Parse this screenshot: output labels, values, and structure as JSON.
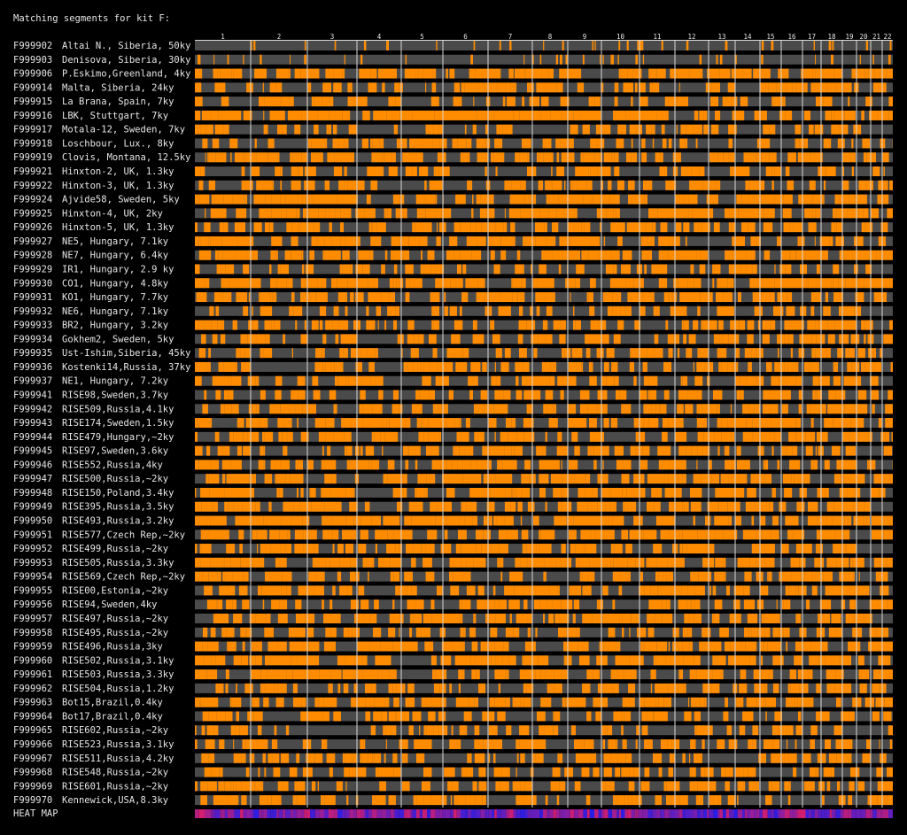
{
  "title": "Matching segments for kit F:",
  "chromosomes": [
    "1",
    "2",
    "3",
    "4",
    "5",
    "6",
    "7",
    "8",
    "9",
    "10",
    "11",
    "12",
    "13",
    "14",
    "15",
    "16",
    "17",
    "18",
    "19",
    "20",
    "21",
    "22"
  ],
  "rows": [
    {
      "kit": "F999902",
      "name": "Altai N., Siberia, 50ky"
    },
    {
      "kit": "F999903",
      "name": "Denisova, Siberia, 30ky"
    },
    {
      "kit": "F999906",
      "name": "P.Eskimo,Greenland, 4ky"
    },
    {
      "kit": "F999914",
      "name": "Malta, Siberia, 24ky"
    },
    {
      "kit": "F999915",
      "name": "La Brana, Spain, 7ky"
    },
    {
      "kit": "F999916",
      "name": "LBK, Stuttgart, 7ky"
    },
    {
      "kit": "F999917",
      "name": "Motala-12, Sweden, 7ky"
    },
    {
      "kit": "F999918",
      "name": "Loschbour, Lux., 8ky"
    },
    {
      "kit": "F999919",
      "name": "Clovis, Montana, 12.5ky"
    },
    {
      "kit": "F999921",
      "name": "Hinxton-2, UK, 1.3ky"
    },
    {
      "kit": "F999922",
      "name": "Hinxton-3, UK, 1.3ky"
    },
    {
      "kit": "F999924",
      "name": "Ajvide58, Sweden, 5ky"
    },
    {
      "kit": "F999925",
      "name": "Hinxton-4, UK, 2ky"
    },
    {
      "kit": "F999926",
      "name": "Hinxton-5, UK, 1.3ky"
    },
    {
      "kit": "F999927",
      "name": "NE5, Hungary, 7.1ky"
    },
    {
      "kit": "F999928",
      "name": "NE7, Hungary, 6.4ky"
    },
    {
      "kit": "F999929",
      "name": "IR1, Hungary, 2.9 ky"
    },
    {
      "kit": "F999930",
      "name": "CO1, Hungary, 4.8ky"
    },
    {
      "kit": "F999931",
      "name": "KO1, Hungary, 7.7ky"
    },
    {
      "kit": "F999932",
      "name": "NE6, Hungary, 7.1ky"
    },
    {
      "kit": "F999933",
      "name": "BR2, Hungary, 3.2ky"
    },
    {
      "kit": "F999934",
      "name": "Gokhem2, Sweden, 5ky"
    },
    {
      "kit": "F999935",
      "name": "Ust-Ishim,Siberia, 45ky"
    },
    {
      "kit": "F999936",
      "name": "Kostenki14,Russia, 37ky"
    },
    {
      "kit": "F999937",
      "name": "NE1, Hungary, 7.2ky"
    },
    {
      "kit": "F999941",
      "name": "RISE98,Sweden,3.7ky"
    },
    {
      "kit": "F999942",
      "name": "RISE509,Russia,4.1ky"
    },
    {
      "kit": "F999943",
      "name": "RISE174,Sweden,1.5ky"
    },
    {
      "kit": "F999944",
      "name": "RISE479,Hungary,~2ky"
    },
    {
      "kit": "F999945",
      "name": "RISE97,Sweden,3.6ky"
    },
    {
      "kit": "F999946",
      "name": "RISE552,Russia,4ky"
    },
    {
      "kit": "F999947",
      "name": "RISE500,Russia,~2ky"
    },
    {
      "kit": "F999948",
      "name": "RISE150,Poland,3.4ky"
    },
    {
      "kit": "F999949",
      "name": "RISE395,Russia,3.5ky"
    },
    {
      "kit": "F999950",
      "name": "RISE493,Russia,3.2ky"
    },
    {
      "kit": "F999951",
      "name": "RISE577,Czech Rep,~2ky"
    },
    {
      "kit": "F999952",
      "name": "RISE499,Russia,~2ky"
    },
    {
      "kit": "F999953",
      "name": "RISE505,Russia,3.3ky"
    },
    {
      "kit": "F999954",
      "name": "RISE569,Czech Rep,~2ky"
    },
    {
      "kit": "F999955",
      "name": "RISE00,Estonia,~2ky"
    },
    {
      "kit": "F999956",
      "name": "RISE94,Sweden,4ky"
    },
    {
      "kit": "F999957",
      "name": "RISE497,Russia,~2ky"
    },
    {
      "kit": "F999958",
      "name": "RISE495,Russia,~2ky"
    },
    {
      "kit": "F999959",
      "name": "RISE496,Russia,3ky"
    },
    {
      "kit": "F999960",
      "name": "RISE502,Russia,3.1ky"
    },
    {
      "kit": "F999961",
      "name": "RISE503,Russia,3.3ky"
    },
    {
      "kit": "F999962",
      "name": "RISE504,Russia,1.2ky"
    },
    {
      "kit": "F999963",
      "name": "Bot15,Brazil,0.4ky"
    },
    {
      "kit": "F999964",
      "name": "Bot17,Brazil,0.4ky"
    },
    {
      "kit": "F999965",
      "name": "RISE602,Russia,~2ky"
    },
    {
      "kit": "F999966",
      "name": "RISE523,Russia,3.1ky"
    },
    {
      "kit": "F999967",
      "name": "RISE511,Russia,4.2ky"
    },
    {
      "kit": "F999968",
      "name": "RISE548,Russia,~2ky"
    },
    {
      "kit": "F999969",
      "name": "RISE601,Russia,~2ky"
    },
    {
      "kit": "F999970",
      "name": "Kennewick,USA,8.3ky"
    }
  ],
  "heatmap_label": "HEAT MAP"
}
